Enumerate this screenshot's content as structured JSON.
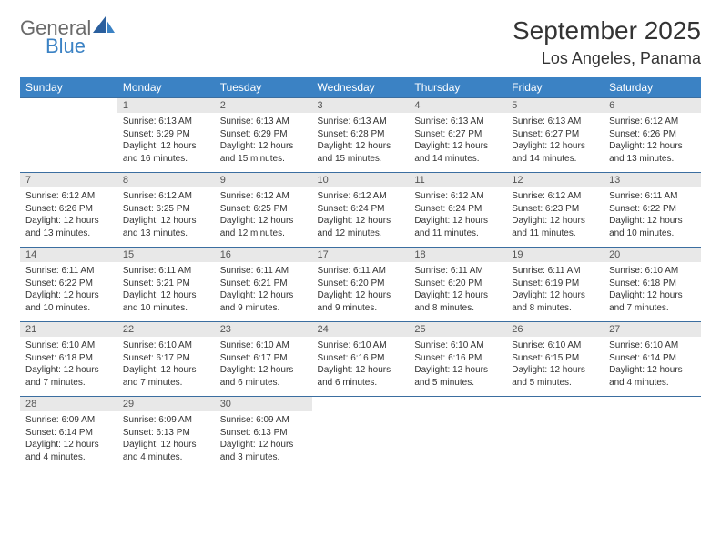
{
  "brand": {
    "part1": "General",
    "part2": "Blue"
  },
  "title": "September 2025",
  "location": "Los Angeles, Panama",
  "colors": {
    "header_bg": "#3b82c4",
    "header_text": "#ffffff",
    "daynum_bg": "#e8e8e8",
    "rule": "#3b6ea0",
    "text": "#333333",
    "logo_gray": "#6a6a6a",
    "logo_blue": "#3b82c4"
  },
  "day_names": [
    "Sunday",
    "Monday",
    "Tuesday",
    "Wednesday",
    "Thursday",
    "Friday",
    "Saturday"
  ],
  "weeks": [
    {
      "nums": [
        "",
        "1",
        "2",
        "3",
        "4",
        "5",
        "6"
      ],
      "cells": [
        null,
        {
          "sunrise": "6:13 AM",
          "sunset": "6:29 PM",
          "daylight": "12 hours and 16 minutes."
        },
        {
          "sunrise": "6:13 AM",
          "sunset": "6:29 PM",
          "daylight": "12 hours and 15 minutes."
        },
        {
          "sunrise": "6:13 AM",
          "sunset": "6:28 PM",
          "daylight": "12 hours and 15 minutes."
        },
        {
          "sunrise": "6:13 AM",
          "sunset": "6:27 PM",
          "daylight": "12 hours and 14 minutes."
        },
        {
          "sunrise": "6:13 AM",
          "sunset": "6:27 PM",
          "daylight": "12 hours and 14 minutes."
        },
        {
          "sunrise": "6:12 AM",
          "sunset": "6:26 PM",
          "daylight": "12 hours and 13 minutes."
        }
      ]
    },
    {
      "nums": [
        "7",
        "8",
        "9",
        "10",
        "11",
        "12",
        "13"
      ],
      "cells": [
        {
          "sunrise": "6:12 AM",
          "sunset": "6:26 PM",
          "daylight": "12 hours and 13 minutes."
        },
        {
          "sunrise": "6:12 AM",
          "sunset": "6:25 PM",
          "daylight": "12 hours and 13 minutes."
        },
        {
          "sunrise": "6:12 AM",
          "sunset": "6:25 PM",
          "daylight": "12 hours and 12 minutes."
        },
        {
          "sunrise": "6:12 AM",
          "sunset": "6:24 PM",
          "daylight": "12 hours and 12 minutes."
        },
        {
          "sunrise": "6:12 AM",
          "sunset": "6:24 PM",
          "daylight": "12 hours and 11 minutes."
        },
        {
          "sunrise": "6:12 AM",
          "sunset": "6:23 PM",
          "daylight": "12 hours and 11 minutes."
        },
        {
          "sunrise": "6:11 AM",
          "sunset": "6:22 PM",
          "daylight": "12 hours and 10 minutes."
        }
      ]
    },
    {
      "nums": [
        "14",
        "15",
        "16",
        "17",
        "18",
        "19",
        "20"
      ],
      "cells": [
        {
          "sunrise": "6:11 AM",
          "sunset": "6:22 PM",
          "daylight": "12 hours and 10 minutes."
        },
        {
          "sunrise": "6:11 AM",
          "sunset": "6:21 PM",
          "daylight": "12 hours and 10 minutes."
        },
        {
          "sunrise": "6:11 AM",
          "sunset": "6:21 PM",
          "daylight": "12 hours and 9 minutes."
        },
        {
          "sunrise": "6:11 AM",
          "sunset": "6:20 PM",
          "daylight": "12 hours and 9 minutes."
        },
        {
          "sunrise": "6:11 AM",
          "sunset": "6:20 PM",
          "daylight": "12 hours and 8 minutes."
        },
        {
          "sunrise": "6:11 AM",
          "sunset": "6:19 PM",
          "daylight": "12 hours and 8 minutes."
        },
        {
          "sunrise": "6:10 AM",
          "sunset": "6:18 PM",
          "daylight": "12 hours and 7 minutes."
        }
      ]
    },
    {
      "nums": [
        "21",
        "22",
        "23",
        "24",
        "25",
        "26",
        "27"
      ],
      "cells": [
        {
          "sunrise": "6:10 AM",
          "sunset": "6:18 PM",
          "daylight": "12 hours and 7 minutes."
        },
        {
          "sunrise": "6:10 AM",
          "sunset": "6:17 PM",
          "daylight": "12 hours and 7 minutes."
        },
        {
          "sunrise": "6:10 AM",
          "sunset": "6:17 PM",
          "daylight": "12 hours and 6 minutes."
        },
        {
          "sunrise": "6:10 AM",
          "sunset": "6:16 PM",
          "daylight": "12 hours and 6 minutes."
        },
        {
          "sunrise": "6:10 AM",
          "sunset": "6:16 PM",
          "daylight": "12 hours and 5 minutes."
        },
        {
          "sunrise": "6:10 AM",
          "sunset": "6:15 PM",
          "daylight": "12 hours and 5 minutes."
        },
        {
          "sunrise": "6:10 AM",
          "sunset": "6:14 PM",
          "daylight": "12 hours and 4 minutes."
        }
      ]
    },
    {
      "nums": [
        "28",
        "29",
        "30",
        "",
        "",
        "",
        ""
      ],
      "cells": [
        {
          "sunrise": "6:09 AM",
          "sunset": "6:14 PM",
          "daylight": "12 hours and 4 minutes."
        },
        {
          "sunrise": "6:09 AM",
          "sunset": "6:13 PM",
          "daylight": "12 hours and 4 minutes."
        },
        {
          "sunrise": "6:09 AM",
          "sunset": "6:13 PM",
          "daylight": "12 hours and 3 minutes."
        },
        null,
        null,
        null,
        null
      ]
    }
  ],
  "labels": {
    "sunrise": "Sunrise:",
    "sunset": "Sunset:",
    "daylight": "Daylight:"
  }
}
